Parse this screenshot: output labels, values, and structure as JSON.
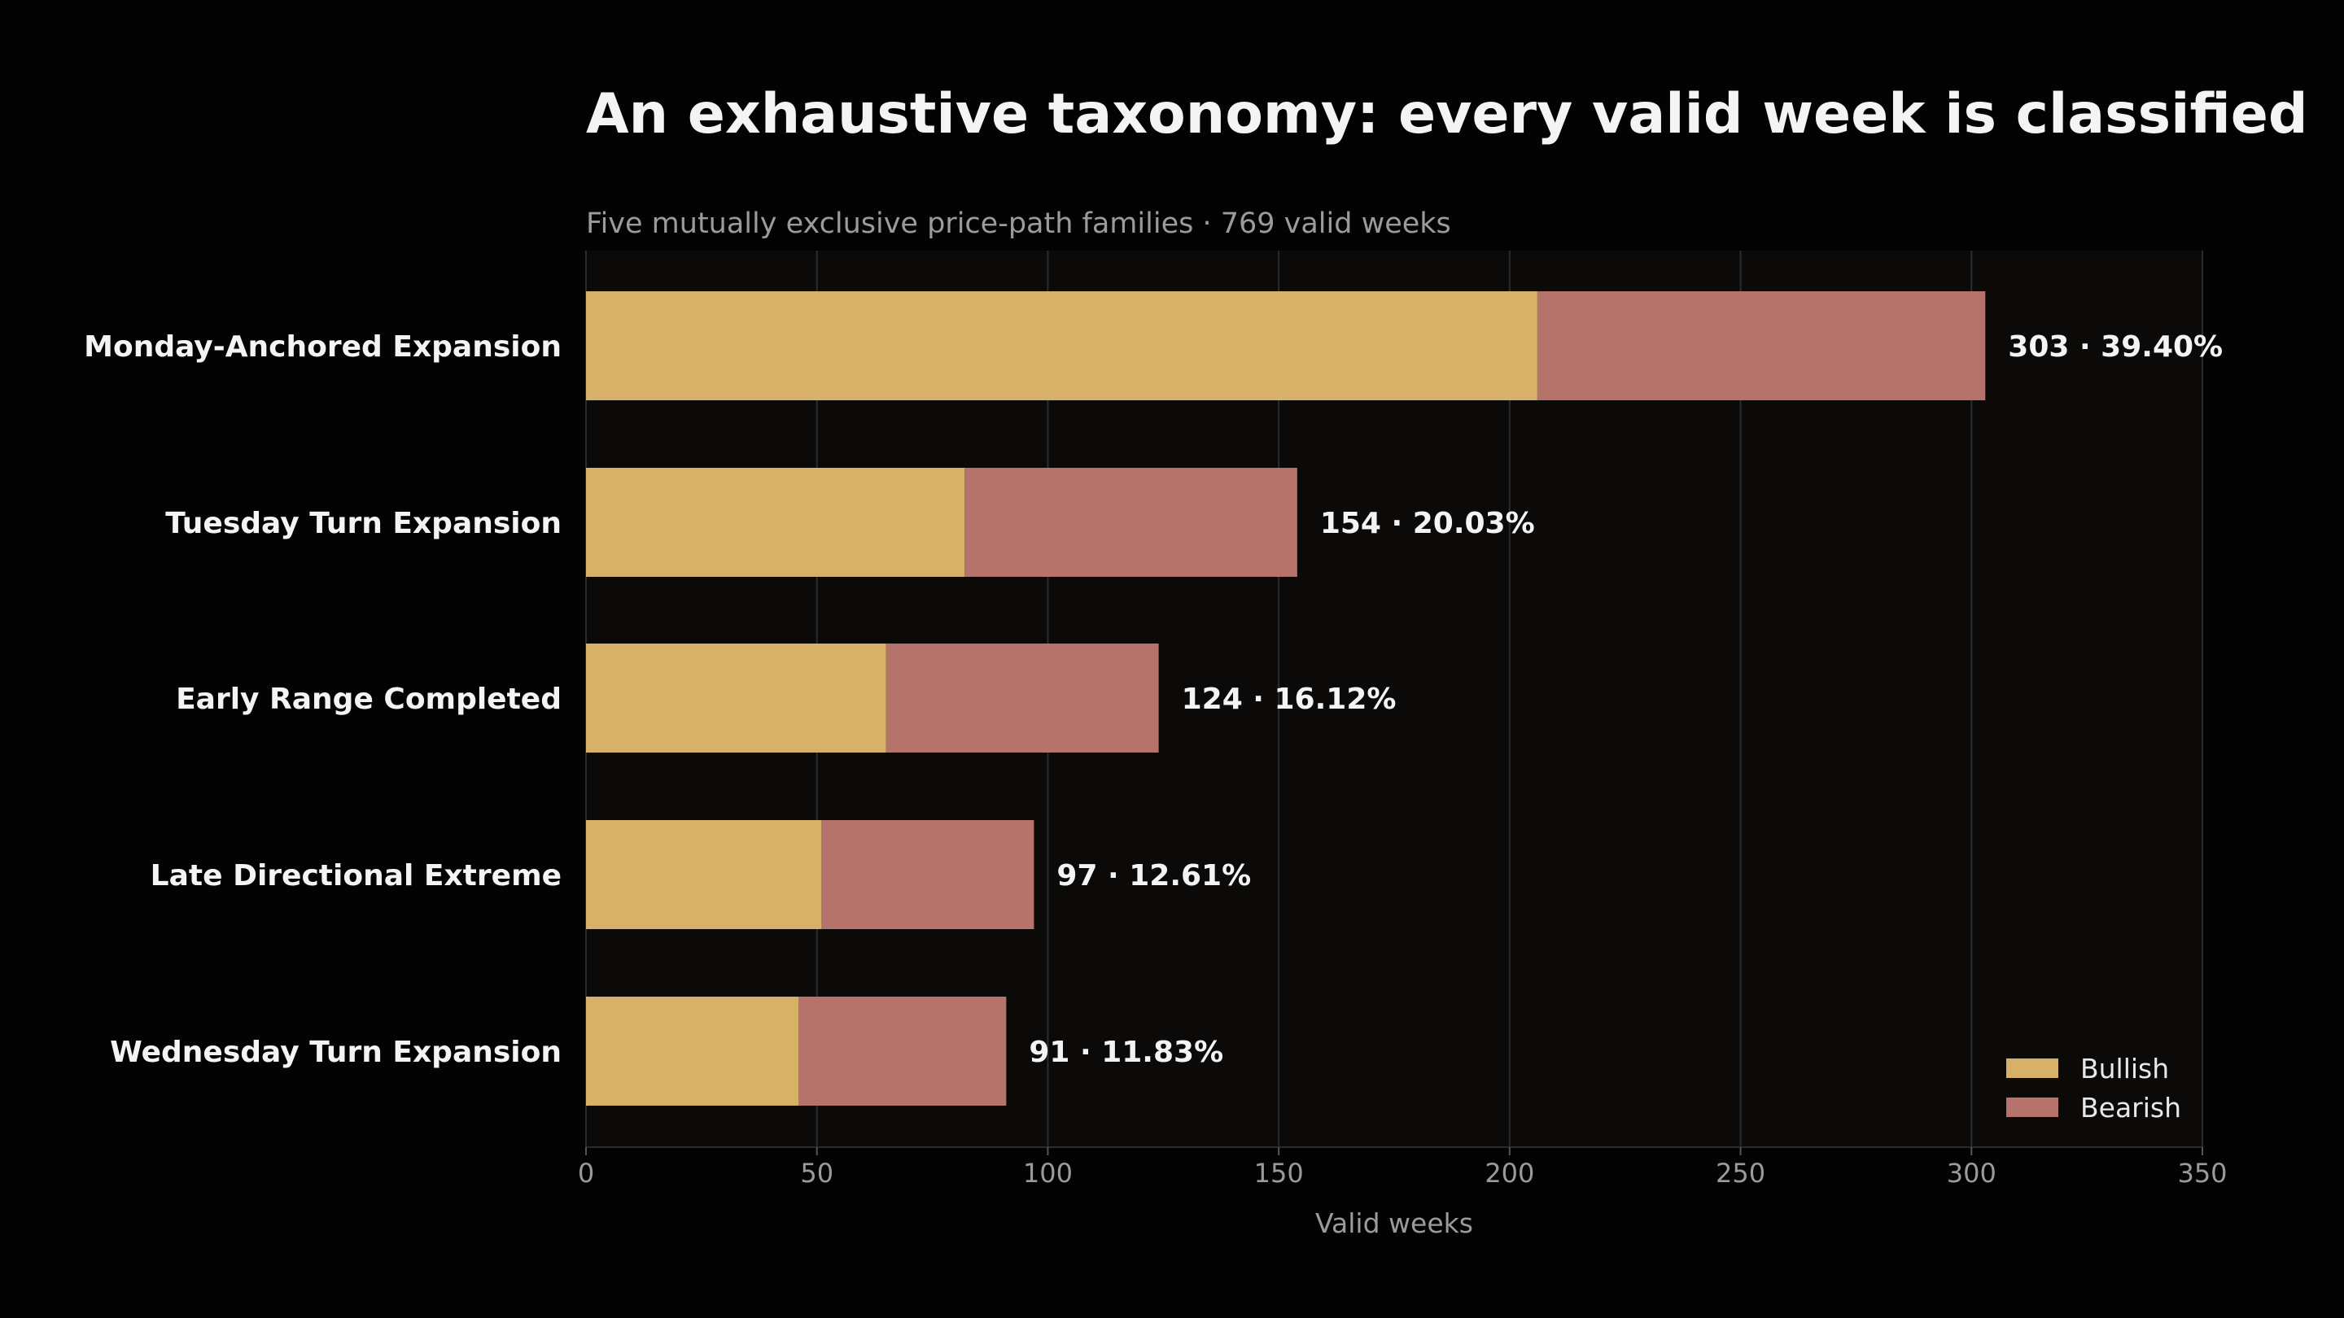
{
  "chart_data": {
    "type": "bar",
    "orientation": "horizontal",
    "stacked": true,
    "title": "An exhaustive taxonomy: every valid week is classified",
    "subtitle": "Five mutually exclusive price-path families · 769 valid weeks",
    "xlabel": "Valid weeks",
    "ylabel": "",
    "xlim": [
      0,
      350
    ],
    "xticks": [
      0,
      50,
      100,
      150,
      200,
      250,
      300,
      350
    ],
    "grid": true,
    "legend_position": "bottom-right",
    "categories": [
      "Monday-Anchored Expansion",
      "Tuesday Turn Expansion",
      "Early Range Completed",
      "Late Directional Extreme",
      "Wednesday Turn Expansion"
    ],
    "series": [
      {
        "name": "Bullish",
        "color": "#d7b167",
        "values": [
          206,
          82,
          65,
          51,
          46
        ]
      },
      {
        "name": "Bearish",
        "color": "#b5736b",
        "values": [
          97,
          72,
          59,
          46,
          45
        ]
      }
    ],
    "totals": [
      303,
      154,
      124,
      97,
      91
    ],
    "data_labels": [
      "303 · 39.40%",
      "154 · 20.03%",
      "124 · 16.12%",
      "97 · 12.61%",
      "91 · 11.83%"
    ],
    "colors": {
      "page_background": "#030303",
      "plot_background": "#0b0a09",
      "grid": "#2c2c2c",
      "text": "#f4f4f4",
      "muted_text": "#9b9b9b"
    }
  }
}
